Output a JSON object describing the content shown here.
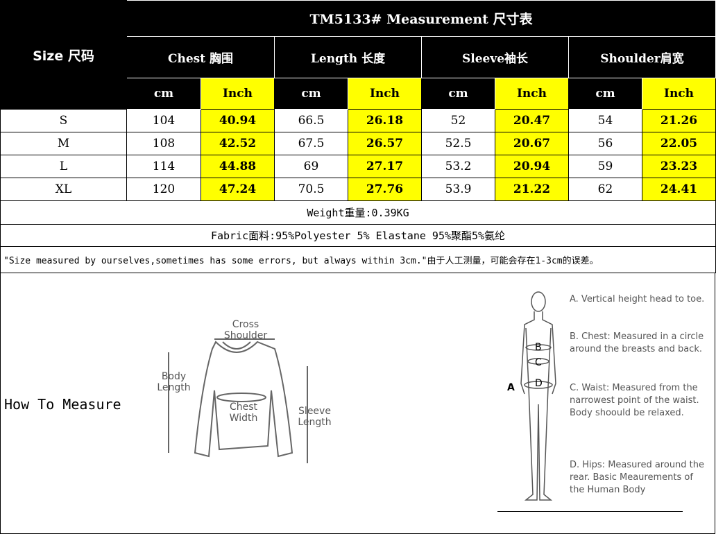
{
  "title": "TM5133# Measurement 尺寸表",
  "size_header": "Size 尺码",
  "groups": [
    "Chest 胸围",
    "Length 长度",
    "Sleeve袖长",
    "Shoulder肩宽"
  ],
  "units": {
    "cm": "cm",
    "inch": "Inch"
  },
  "rows": [
    {
      "size": "S",
      "vals": [
        "104",
        "40.94",
        "66.5",
        "26.18",
        "52",
        "20.47",
        "54",
        "21.26"
      ]
    },
    {
      "size": "M",
      "vals": [
        "108",
        "42.52",
        "67.5",
        "26.57",
        "52.5",
        "20.67",
        "56",
        "22.05"
      ]
    },
    {
      "size": "L",
      "vals": [
        "114",
        "44.88",
        "69",
        "27.17",
        "53.2",
        "20.94",
        "59",
        "23.23"
      ]
    },
    {
      "size": "XL",
      "vals": [
        "120",
        "47.24",
        "70.5",
        "27.76",
        "53.9",
        "21.22",
        "62",
        "24.41"
      ]
    }
  ],
  "weight": "Weight重量:0.39KG",
  "fabric": "Fabric面料:95%Polyester 5% Elastane 95%聚酯5%氨纶",
  "note": "\"Size measured by ourselves,sometimes has some errors, but always within 3cm.\"由于人工测量，可能会存在1-3cm的误差。",
  "how_to_measure": "How To Measure",
  "sweater_labels": {
    "shoulder": "Cross Shoulder",
    "body": "Body Length",
    "chest": "Chest Width",
    "sleeve": "Sleeve Length"
  },
  "body_labels": [
    "A",
    "B",
    "C",
    "D"
  ],
  "descriptions": [
    "A. Vertical height head to toe.",
    "B. Chest: Measured in a circle around the breasts and back.",
    "C. Waist: Measured from the narrowest point of the waist. Body shoould be relaxed.",
    "D. Hips: Measured around the rear. Basic Meaurements of the Human Body"
  ],
  "colors": {
    "highlight": "#ffff00",
    "header_bg": "#000000"
  }
}
